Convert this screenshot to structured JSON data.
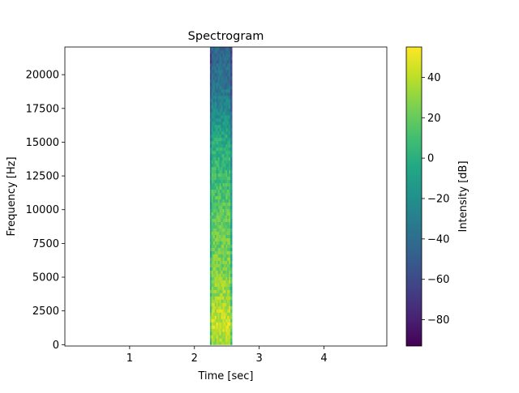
{
  "chart_data": {
    "type": "heatmap",
    "title": "Spectrogram",
    "xlabel": "Time [sec]",
    "ylabel": "Frequency [Hz]",
    "xlim": [
      0,
      4.97
    ],
    "ylim": [
      -100,
      22050
    ],
    "x_ticks": [
      1,
      2,
      3,
      4
    ],
    "x_tick_labels": [
      "1",
      "2",
      "3",
      "4"
    ],
    "y_ticks": [
      0,
      2500,
      5000,
      7500,
      10000,
      12500,
      15000,
      17500,
      20000
    ],
    "y_tick_labels": [
      "0",
      "2500",
      "5000",
      "7500",
      "10000",
      "12500",
      "15000",
      "17500",
      "20000"
    ],
    "grid": false,
    "signal_band": {
      "t_start": 2.24,
      "t_end": 2.58,
      "f_min": 0,
      "f_max": 22050
    },
    "intensity_profile_db": [
      {
        "freq": 0,
        "db": 30
      },
      {
        "freq": 1500,
        "db": 45
      },
      {
        "freq": 3000,
        "db": 35
      },
      {
        "freq": 6000,
        "db": 25
      },
      {
        "freq": 9000,
        "db": 20
      },
      {
        "freq": 12000,
        "db": 10
      },
      {
        "freq": 15000,
        "db": 0
      },
      {
        "freq": 17000,
        "db": -20
      },
      {
        "freq": 19000,
        "db": -35
      },
      {
        "freq": 22050,
        "db": -45
      }
    ],
    "colorbar": {
      "label": "Intensity [dB]",
      "min": -93,
      "max": 55,
      "ticks": [
        40,
        20,
        0,
        -20,
        -40,
        -60,
        -80
      ],
      "tick_labels": [
        "40",
        "20",
        "0",
        "−20",
        "−40",
        "−60",
        "−80"
      ],
      "colormap": "viridis"
    }
  }
}
